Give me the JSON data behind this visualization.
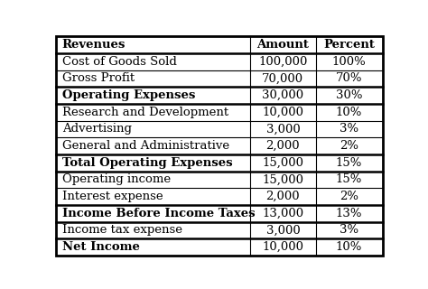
{
  "rows": [
    {
      "label": "Revenues",
      "amount": "Amount",
      "percent": "Percent",
      "label_bold": true,
      "header": true
    },
    {
      "label": "Cost of Goods Sold",
      "amount": "100,000",
      "percent": "100%",
      "label_bold": false,
      "header": false
    },
    {
      "label": "Gross Profit",
      "amount": "70,000",
      "percent": "70%",
      "label_bold": false,
      "header": false
    },
    {
      "label": "Operating Expenses",
      "amount": "30,000",
      "percent": "30%",
      "label_bold": true,
      "header": false
    },
    {
      "label": "Research and Development",
      "amount": "10,000",
      "percent": "10%",
      "label_bold": false,
      "header": false
    },
    {
      "label": "Advertising",
      "amount": "3,000",
      "percent": "3%",
      "label_bold": false,
      "header": false
    },
    {
      "label": "General and Administrative",
      "amount": "2,000",
      "percent": "2%",
      "label_bold": false,
      "header": false
    },
    {
      "label": "Total Operating Expenses",
      "amount": "15,000",
      "percent": "15%",
      "label_bold": true,
      "header": false
    },
    {
      "label": "Operating income",
      "amount": "15,000",
      "percent": "15%",
      "label_bold": false,
      "header": false
    },
    {
      "label": "Interest expense",
      "amount": "2,000",
      "percent": "2%",
      "label_bold": false,
      "header": false
    },
    {
      "label": "Income Before Income Taxes",
      "amount": "13,000",
      "percent": "13%",
      "label_bold": true,
      "header": false
    },
    {
      "label": "Income tax expense",
      "amount": "3,000",
      "percent": "3%",
      "label_bold": false,
      "header": false
    },
    {
      "label": "Net Income",
      "amount": "10,000",
      "percent": "10%",
      "label_bold": true,
      "header": false
    }
  ],
  "col_splits": [
    0.595,
    0.795
  ],
  "background_color": "#ffffff",
  "border_color": "#000000",
  "text_color": "#000000",
  "font_family": "DejaVu Serif",
  "font_size_label": 9.5,
  "font_size_data": 9.5,
  "outer_lw": 2.0,
  "inner_lw": 0.8,
  "bold_border_lw": 1.8
}
